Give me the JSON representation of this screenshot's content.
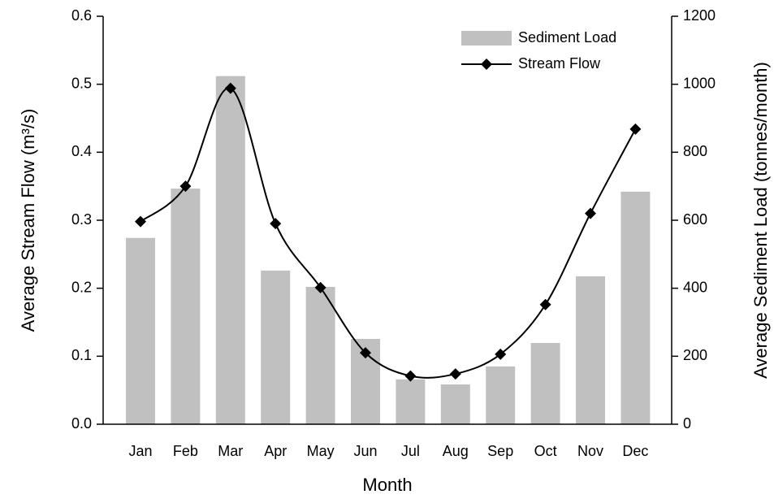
{
  "chart_data": {
    "type": "bar",
    "x_label": "Month",
    "y_label": "Average Stream Flow (m³/s)",
    "y2_label": "Average Sediment Load (tonnes/month)",
    "categories": [
      "Jan",
      "Feb",
      "Mar",
      "Apr",
      "May",
      "Jun",
      "Jul",
      "Aug",
      "Sep",
      "Oct",
      "Nov",
      "Dec"
    ],
    "series": [
      {
        "name": "Sediment Load",
        "type": "bar",
        "axis": "y2",
        "color": "#c0c0c0",
        "values": [
          548,
          693,
          1024,
          452,
          404,
          251,
          132,
          117,
          170,
          239,
          435,
          684
        ]
      },
      {
        "name": "Stream Flow",
        "type": "line",
        "axis": "y",
        "color": "#000000",
        "marker": "diamond",
        "smooth": true,
        "values": [
          0.298,
          0.35,
          0.494,
          0.295,
          0.201,
          0.105,
          0.071,
          0.074,
          0.103,
          0.176,
          0.31,
          0.434
        ]
      }
    ],
    "ylim": [
      0,
      0.6
    ],
    "yticks": [
      {
        "value": 0,
        "label": "0.0"
      },
      0.1,
      0.2,
      0.3,
      0.4,
      0.5,
      0.6
    ],
    "y2lim": [
      0,
      1200
    ],
    "y2ticks": [
      0,
      200,
      400,
      600,
      800,
      1000,
      1200
    ],
    "grid": false,
    "legend": "upper-right"
  }
}
